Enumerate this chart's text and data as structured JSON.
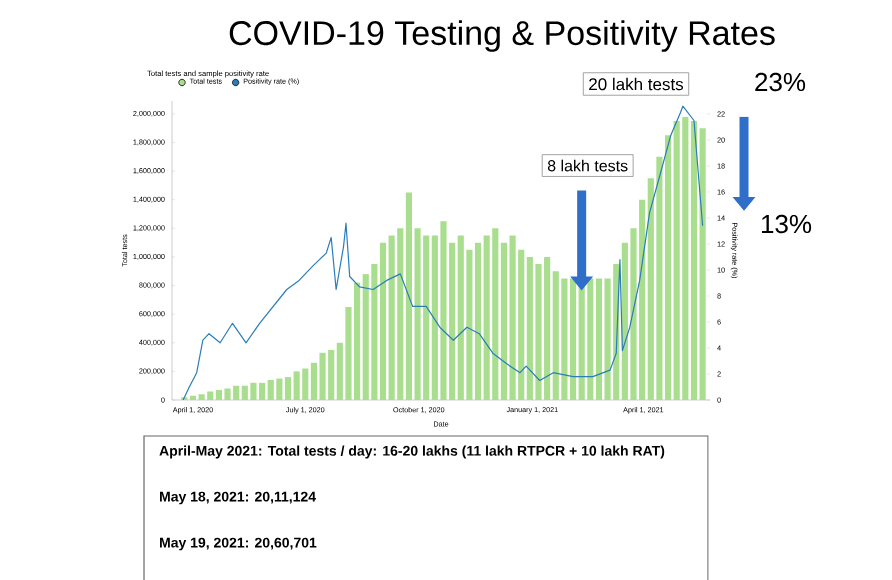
{
  "chart_data": {
    "type": "bar",
    "title": "COVID-19 Testing & Positivity Rates",
    "subtitle": "Total tests and sample positivity rate",
    "xlabel": "Date",
    "ylabel": "Total tests",
    "y2label": "Positivity rate (%)",
    "series": [
      {
        "name": "Total tests",
        "color": "#a9de8e",
        "x": [
          "2020-03-25",
          "2020-04-01",
          "2020-04-08",
          "2020-04-15",
          "2020-04-22",
          "2020-04-29",
          "2020-05-06",
          "2020-05-13",
          "2020-05-20",
          "2020-05-27",
          "2020-06-03",
          "2020-06-10",
          "2020-06-17",
          "2020-06-24",
          "2020-07-01",
          "2020-07-08",
          "2020-07-15",
          "2020-07-22",
          "2020-07-29",
          "2020-08-05",
          "2020-08-12",
          "2020-08-19",
          "2020-08-26",
          "2020-09-02",
          "2020-09-09",
          "2020-09-16",
          "2020-09-23",
          "2020-09-30",
          "2020-10-07",
          "2020-10-14",
          "2020-10-21",
          "2020-10-28",
          "2020-11-04",
          "2020-11-11",
          "2020-11-18",
          "2020-11-25",
          "2020-12-02",
          "2020-12-09",
          "2020-12-16",
          "2020-12-23",
          "2020-12-30",
          "2021-01-06",
          "2021-01-13",
          "2021-01-20",
          "2021-01-27",
          "2021-02-03",
          "2021-02-10",
          "2021-02-17",
          "2021-02-24",
          "2021-03-03",
          "2021-03-10",
          "2021-03-17",
          "2021-03-24",
          "2021-03-31",
          "2021-04-07",
          "2021-04-14",
          "2021-04-21",
          "2021-04-28",
          "2021-05-05",
          "2021-05-12",
          "2021-05-19"
        ],
        "values": [
          20000,
          30000,
          40000,
          60000,
          70000,
          80000,
          100000,
          100000,
          120000,
          120000,
          140000,
          150000,
          160000,
          200000,
          220000,
          260000,
          330000,
          350000,
          400000,
          650000,
          820000,
          880000,
          950000,
          1100000,
          1150000,
          1200000,
          1450000,
          1200000,
          1150000,
          1150000,
          1250000,
          1100000,
          1150000,
          1050000,
          1100000,
          1150000,
          1200000,
          1100000,
          1150000,
          1050000,
          1000000,
          950000,
          1000000,
          900000,
          850000,
          850000,
          800000,
          850000,
          850000,
          850000,
          950000,
          1100000,
          1200000,
          1400000,
          1550000,
          1700000,
          1850000,
          1950000,
          1980000,
          1950000,
          1900000
        ]
      },
      {
        "name": "Positivity rate (%)",
        "type": "line",
        "axis": "y2",
        "color": "#2a7db8",
        "x": [
          "2020-03-24",
          "2020-03-29",
          "2020-04-04",
          "2020-04-09",
          "2020-04-14",
          "2020-04-23",
          "2020-05-03",
          "2020-05-14",
          "2020-05-25",
          "2020-06-05",
          "2020-06-16",
          "2020-06-26",
          "2020-07-07",
          "2020-07-18",
          "2020-07-22",
          "2020-07-26",
          "2020-08-01",
          "2020-08-03",
          "2020-08-06",
          "2020-08-14",
          "2020-08-25",
          "2020-09-05",
          "2020-09-16",
          "2020-09-26",
          "2020-10-07",
          "2020-10-18",
          "2020-10-29",
          "2020-11-09",
          "2020-11-19",
          "2020-11-30",
          "2020-12-11",
          "2020-12-22",
          "2020-12-27",
          "2021-01-07",
          "2021-01-18",
          "2021-02-03",
          "2021-02-19",
          "2021-03-05",
          "2021-03-10",
          "2021-03-13",
          "2021-03-15",
          "2021-03-21",
          "2021-03-29",
          "2021-04-06",
          "2021-04-15",
          "2021-04-23",
          "2021-05-01",
          "2021-05-03",
          "2021-05-12",
          "2021-05-19"
        ],
        "values": [
          0,
          1.0,
          2.1,
          4.6,
          5.1,
          4.4,
          5.9,
          4.4,
          5.9,
          7.2,
          8.5,
          9.2,
          10.3,
          11.3,
          12.5,
          8.5,
          11.8,
          13.6,
          9.5,
          8.7,
          8.5,
          9.2,
          9.7,
          7.2,
          7.2,
          5.6,
          4.6,
          5.6,
          5.1,
          3.6,
          2.8,
          2.1,
          2.6,
          1.5,
          2.1,
          1.8,
          1.8,
          2.3,
          3.6,
          10.8,
          3.8,
          5.6,
          9.2,
          14.4,
          17.5,
          20.3,
          22.1,
          22.6,
          21.5,
          13.4
        ]
      }
    ],
    "xlim": [
      "2020-03-15",
      "2021-05-25"
    ],
    "xticks": [
      {
        "value": "2020-04-01",
        "label": "April 1, 2020"
      },
      {
        "value": "2020-07-01",
        "label": "July 1, 2020"
      },
      {
        "value": "2020-10-01",
        "label": "October 1, 2020"
      },
      {
        "value": "2021-01-01",
        "label": "January 1, 2021"
      },
      {
        "value": "2021-04-01",
        "label": "April 1, 2021"
      }
    ],
    "ylim": [
      0,
      2090000
    ],
    "yticks": [
      0,
      {
        "value": 200000,
        "label": "200,000"
      },
      {
        "value": 400000,
        "label": "400,000"
      },
      {
        "value": 600000,
        "label": "600,000"
      },
      {
        "value": 800000,
        "label": "800,000"
      },
      {
        "value": 1000000,
        "label": "1,000,000"
      },
      {
        "value": 1200000,
        "label": "1,200,000"
      },
      {
        "value": 1400000,
        "label": "1,400,000"
      },
      {
        "value": 1600000,
        "label": "1,600,000"
      },
      {
        "value": 1800000,
        "label": "1,800,000"
      },
      {
        "value": 2000000,
        "label": "2,000,000"
      }
    ],
    "y2lim": [
      0,
      23
    ],
    "y2ticks": [
      0,
      2,
      4,
      6,
      8,
      10,
      12,
      14,
      16,
      18,
      20,
      22
    ],
    "legend": "top left",
    "annotations": [
      "20 lakh tests",
      "23%",
      {
        "text": "8 lakh tests",
        "x": "2021-02-10",
        "y": 800000
      },
      "13%",
      "April-May 2021: Total tests / day: 16-20 lakhs (11 lakh RTPCR + 10 lakh RAT)",
      "May 18, 2021: 20,11,124",
      "May 19, 2021: 20,60,701"
    ]
  }
}
